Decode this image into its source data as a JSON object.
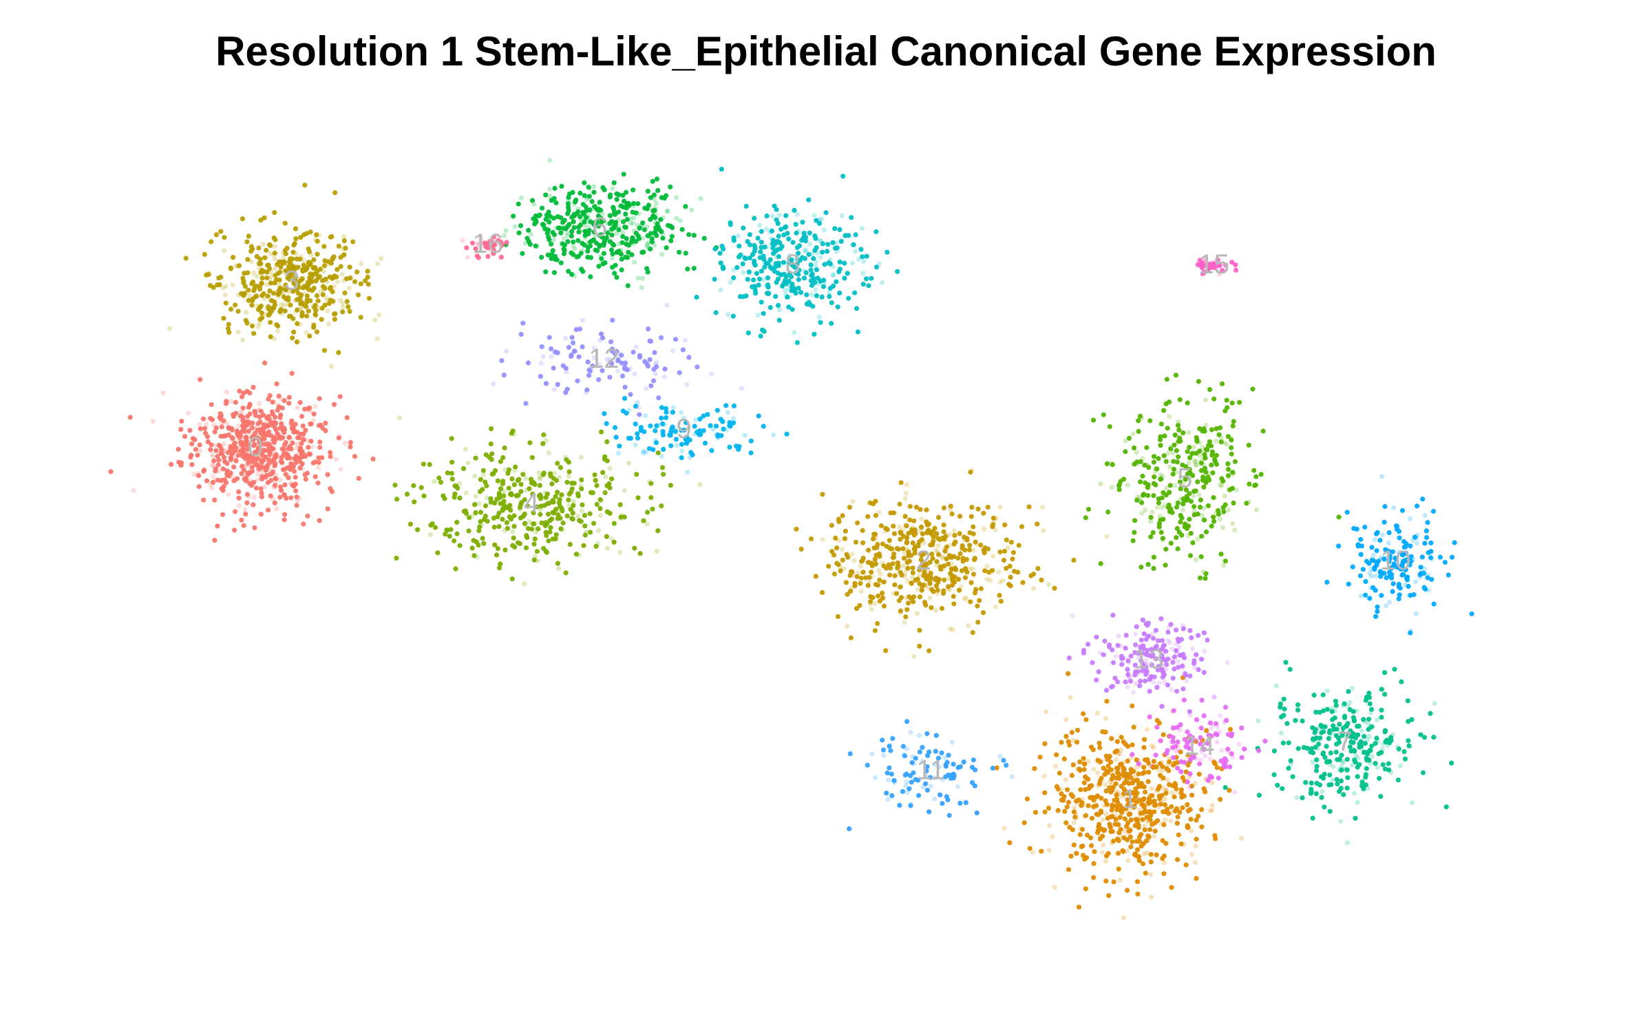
{
  "chart_data": {
    "type": "scatter",
    "title": "Resolution 1 Stem-Like_Epithelial Canonical Gene Expression",
    "xlabel": "",
    "ylabel": "",
    "axes_visible": false,
    "grid": false,
    "legend": "none",
    "xlim": [
      0,
      100
    ],
    "ylim": [
      0,
      100
    ],
    "label_color": "#b8b8b8",
    "clusters": [
      {
        "label": "0",
        "color": "#F8766D",
        "x": 10.0,
        "y": 61.8,
        "sx": 4.5,
        "sy": 6.0,
        "n": 650
      },
      {
        "label": "1",
        "color": "#DE8C00",
        "x": 70.2,
        "y": 19.0,
        "sx": 5.0,
        "sy": 8.0,
        "n": 600
      },
      {
        "label": "2",
        "color": "#C49A00",
        "x": 56.0,
        "y": 48.0,
        "sx": 6.0,
        "sy": 7.0,
        "n": 500
      },
      {
        "label": "3",
        "color": "#B79F00",
        "x": 12.5,
        "y": 82.0,
        "sx": 4.5,
        "sy": 6.0,
        "n": 450
      },
      {
        "label": "4",
        "color": "#7CAE00",
        "x": 29.0,
        "y": 55.0,
        "sx": 7.0,
        "sy": 6.0,
        "n": 400
      },
      {
        "label": "5",
        "color": "#53B400",
        "x": 74.0,
        "y": 58.0,
        "sx": 4.5,
        "sy": 9.0,
        "n": 350
      },
      {
        "label": "6",
        "color": "#00BA38",
        "x": 33.7,
        "y": 88.5,
        "sx": 5.0,
        "sy": 5.0,
        "n": 420
      },
      {
        "label": "7",
        "color": "#00C08B",
        "x": 85.0,
        "y": 26.0,
        "sx": 4.5,
        "sy": 6.5,
        "n": 300
      },
      {
        "label": "8",
        "color": "#00BFC4",
        "x": 47.0,
        "y": 84.0,
        "sx": 4.5,
        "sy": 6.0,
        "n": 330
      },
      {
        "label": "9",
        "color": "#00B4F0",
        "x": 39.5,
        "y": 64.0,
        "sx": 5.0,
        "sy": 3.0,
        "n": 120
      },
      {
        "label": "10",
        "color": "#00A9FF",
        "x": 88.5,
        "y": 48.0,
        "sx": 3.0,
        "sy": 5.0,
        "n": 180
      },
      {
        "label": "11",
        "color": "#35A2FF",
        "x": 56.5,
        "y": 22.5,
        "sx": 4.5,
        "sy": 4.5,
        "n": 110
      },
      {
        "label": "12",
        "color": "#9590FF",
        "x": 34.0,
        "y": 72.5,
        "sx": 6.0,
        "sy": 4.5,
        "n": 120
      },
      {
        "label": "13",
        "color": "#C77CFF",
        "x": 71.5,
        "y": 36.0,
        "sx": 3.5,
        "sy": 4.0,
        "n": 200
      },
      {
        "label": "14",
        "color": "#E76BF3",
        "x": 75.0,
        "y": 25.5,
        "sx": 3.0,
        "sy": 4.0,
        "n": 110
      },
      {
        "label": "15",
        "color": "#FF61C9",
        "x": 76.0,
        "y": 84.0,
        "sx": 1.2,
        "sy": 0.8,
        "n": 40
      },
      {
        "label": "16",
        "color": "#FF6C91",
        "x": 26.0,
        "y": 86.5,
        "sx": 1.3,
        "sy": 1.5,
        "n": 40
      }
    ]
  }
}
